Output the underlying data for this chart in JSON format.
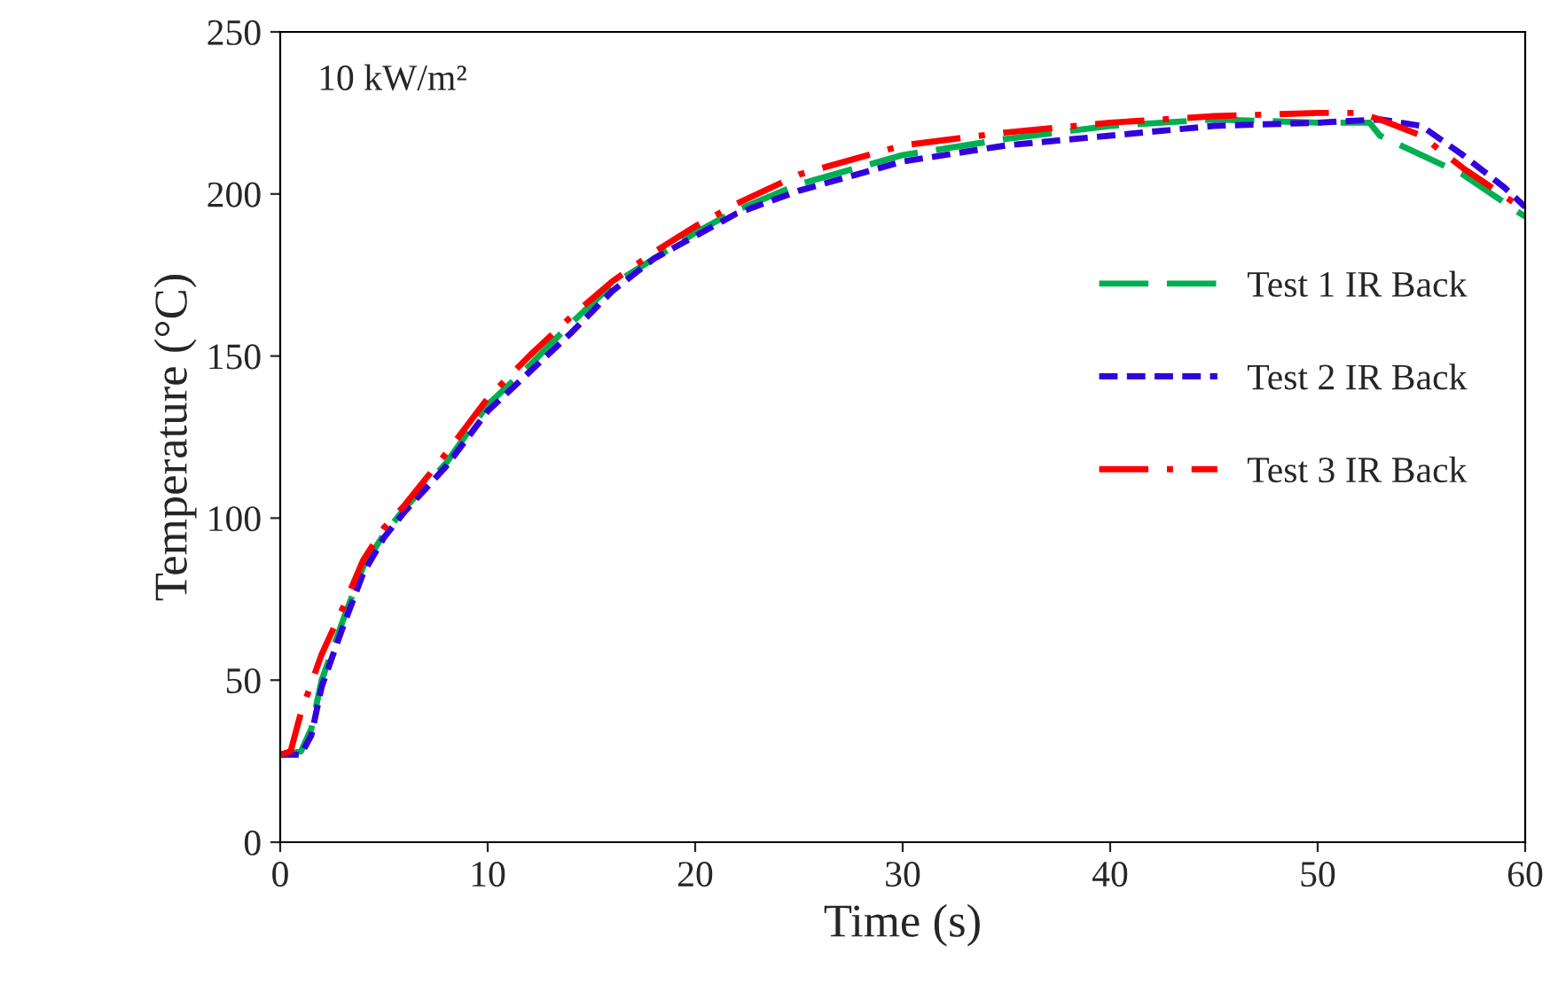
{
  "chart_data": {
    "type": "line",
    "xlabel": "Time (s)",
    "ylabel": "Temperature (°C)",
    "xlim": [
      0,
      60
    ],
    "xticks": [
      0,
      10,
      20,
      30,
      40,
      50,
      60
    ],
    "ylim": [
      0,
      250
    ],
    "yticks": [
      0,
      50,
      100,
      150,
      200,
      250
    ],
    "grid": false,
    "legend": "right",
    "marker": "none",
    "annotations": [
      "10 kW/m²"
    ],
    "series": [
      {
        "name": "Test 1 IR Back",
        "color": "#00b050",
        "line_style": "dashed",
        "x": [
          0,
          1,
          1.5,
          2,
          3,
          4,
          5,
          6,
          8,
          10,
          12,
          14,
          16,
          18,
          20,
          22,
          25,
          30,
          35,
          40,
          45,
          50,
          52.5,
          53,
          55,
          57,
          60
        ],
        "values": [
          27,
          28,
          35,
          50,
          68,
          85,
          95,
          103,
          117,
          135,
          147,
          160,
          172,
          180,
          188,
          195,
          203,
          212,
          217,
          221,
          223,
          222,
          222,
          218,
          212,
          206,
          193
        ]
      },
      {
        "name": "Test 2 IR Back",
        "color": "#3300dd",
        "line_style": "dotted",
        "x": [
          0,
          1,
          1.5,
          2,
          3,
          4,
          5,
          6,
          8,
          10,
          12,
          14,
          16,
          18,
          20,
          22,
          25,
          30,
          35,
          40,
          45,
          50,
          53,
          55,
          57,
          59,
          60
        ],
        "values": [
          27,
          27,
          33,
          48,
          66,
          83,
          94,
          102,
          116,
          133,
          145,
          157,
          170,
          180,
          187,
          194,
          201,
          210,
          215,
          218,
          221,
          222,
          223,
          221,
          212,
          202,
          196
        ]
      },
      {
        "name": "Test 3 IR Back",
        "color": "#ff0000",
        "line_style": "dashdot",
        "x": [
          0,
          0.5,
          1,
          2,
          3,
          4,
          5,
          6,
          8,
          10,
          12,
          14,
          16,
          18,
          20,
          22,
          25,
          30,
          35,
          40,
          45,
          50,
          52,
          53,
          55,
          57,
          60
        ],
        "values": [
          27,
          28,
          40,
          58,
          72,
          87,
          97,
          104,
          120,
          137,
          150,
          162,
          173,
          182,
          190,
          197,
          206,
          215,
          219,
          222,
          224,
          225,
          225,
          223,
          218,
          208,
          195
        ]
      }
    ]
  }
}
